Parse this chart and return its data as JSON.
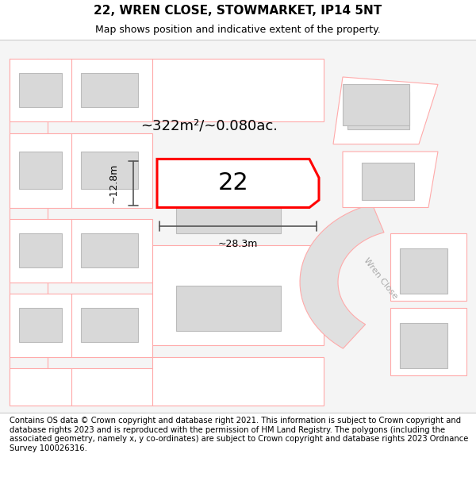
{
  "title": "22, WREN CLOSE, STOWMARKET, IP14 5NT",
  "subtitle": "Map shows position and indicative extent of the property.",
  "footer": "Contains OS data © Crown copyright and database right 2021. This information is subject to Crown copyright and database rights 2023 and is reproduced with the permission of HM Land Registry. The polygons (including the associated geometry, namely x, y co-ordinates) are subject to Crown copyright and database rights 2023 Ordnance Survey 100026316.",
  "area_label": "~322m²/~0.080ac.",
  "width_label": "~28.3m",
  "height_label": "~12.8m",
  "number_label": "22",
  "bg_color": "#ffffff",
  "map_bg": "#f9f9f9",
  "building_fill": "#d8d8d8",
  "building_stroke": "#cccccc",
  "plot_fill": "#ffffff",
  "plot_stroke": "#ff0000",
  "road_fill": "#e8e8e8",
  "pink_line": "#ffaaaa",
  "dim_line": "#555555",
  "road_label_color": "#aaaaaa",
  "title_fontsize": 11,
  "subtitle_fontsize": 9,
  "footer_fontsize": 7.2,
  "area_fontsize": 13,
  "number_fontsize": 22,
  "dim_fontsize": 9
}
